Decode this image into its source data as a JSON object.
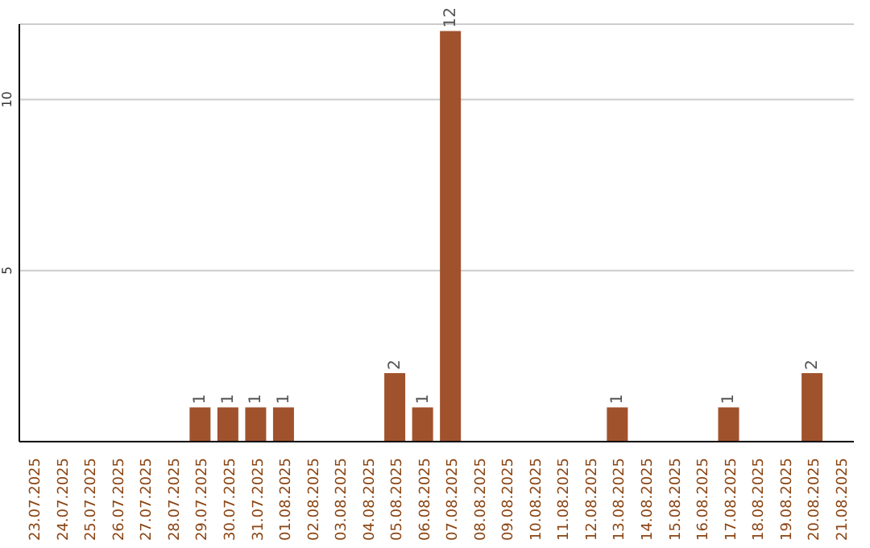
{
  "chart_data": {
    "type": "bar",
    "categories": [
      "23.07.2025",
      "24.07.2025",
      "25.07.2025",
      "26.07.2025",
      "27.07.2025",
      "28.07.2025",
      "29.07.2025",
      "30.07.2025",
      "31.07.2025",
      "01.08.2025",
      "02.08.2025",
      "03.08.2025",
      "04.08.2025",
      "05.08.2025",
      "06.08.2025",
      "07.08.2025",
      "08.08.2025",
      "09.08.2025",
      "10.08.2025",
      "11.08.2025",
      "12.08.2025",
      "13.08.2025",
      "14.08.2025",
      "15.08.2025",
      "16.08.2025",
      "17.08.2025",
      "18.08.2025",
      "19.08.2025",
      "20.08.2025",
      "21.08.2025"
    ],
    "values": [
      0,
      0,
      0,
      0,
      0,
      0,
      1,
      1,
      1,
      1,
      0,
      0,
      0,
      2,
      1,
      12,
      0,
      0,
      0,
      0,
      0,
      1,
      0,
      0,
      0,
      1,
      0,
      0,
      2,
      0
    ],
    "value_labels": [
      null,
      null,
      null,
      null,
      null,
      null,
      "1",
      "1",
      "1",
      "1",
      null,
      null,
      null,
      "2",
      "1",
      "12",
      null,
      null,
      null,
      null,
      null,
      "1",
      null,
      null,
      null,
      "1",
      null,
      null,
      "2",
      null
    ],
    "color": "#a0522d",
    "ylim": [
      0,
      12.2
    ],
    "yticks": [
      5,
      10
    ],
    "grid": "y"
  }
}
